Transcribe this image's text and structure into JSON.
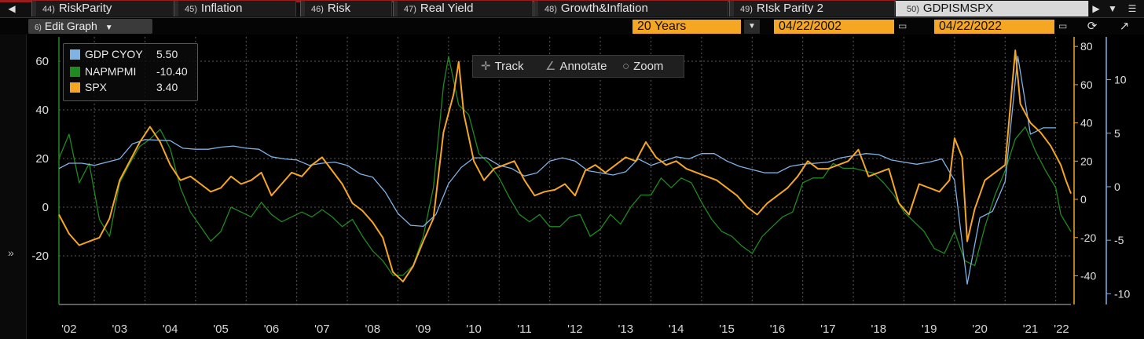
{
  "tabs": [
    {
      "num": "44)",
      "label": "RiskParity"
    },
    {
      "num": "45)",
      "label": "Inflation"
    },
    {
      "num": "46)",
      "label": "Risk"
    },
    {
      "num": "47)",
      "label": "Real Yield"
    },
    {
      "num": "48)",
      "label": "Growth&Inflation"
    },
    {
      "num": "49)",
      "label": "RIsk Parity 2"
    },
    {
      "num": "50)",
      "label": "GDPISMSPX"
    }
  ],
  "toolbar": {
    "edit_num": "6)",
    "edit_label": "Edit Graph",
    "period": "20 Years",
    "start_date": "04/22/2002",
    "end_date": "04/22/2022"
  },
  "chart_tools": {
    "track": "Track",
    "annotate": "Annotate",
    "zoom": "Zoom"
  },
  "legend": [
    {
      "name": "GDP CYOY",
      "value": "5.50",
      "color": "#7fb2e5"
    },
    {
      "name": "NAPMPMI",
      "value": "-10.40",
      "color": "#1f8a1f"
    },
    {
      "name": "SPX",
      "value": "3.40",
      "color": "#f5a623"
    }
  ],
  "colors": {
    "gdp": "#7fb2e5",
    "pmi": "#1f8a1f",
    "spx": "#f5a623",
    "background": "#000000",
    "grid": "#5a5a5a",
    "accent": "#f5a623"
  },
  "chart_data": {
    "type": "line",
    "grid": true,
    "legend_position": "top-left",
    "x_tick_labels": [
      "'02",
      "'03",
      "'04",
      "'05",
      "'06",
      "'07",
      "'08",
      "'09",
      "'10",
      "'11",
      "'12",
      "'13",
      "'14",
      "'15",
      "'16",
      "'17",
      "'18",
      "'19",
      "'20",
      "'21",
      "'22"
    ],
    "xlim": [
      2002.3,
      2022.3
    ],
    "axes": {
      "left": {
        "ticks": [
          60,
          40,
          20,
          0,
          -20
        ],
        "ylim": [
          -40,
          70
        ],
        "series": "NAPMPMI"
      },
      "right1": {
        "ticks": [
          80,
          60,
          40,
          20,
          0,
          -20,
          -40
        ],
        "ylim": [
          -55,
          85
        ],
        "series": "SPX"
      },
      "right2": {
        "ticks": [
          10,
          5,
          0,
          -5,
          -10
        ],
        "ylim": [
          -11,
          14
        ],
        "series": "GDP CYOY"
      }
    },
    "series": [
      {
        "name": "GDP CYOY",
        "axis": "right2",
        "points": [
          [
            2002.3,
            1.7
          ],
          [
            2002.5,
            2.2
          ],
          [
            2002.75,
            2.2
          ],
          [
            2003.0,
            2.0
          ],
          [
            2003.5,
            2.6
          ],
          [
            2003.75,
            4.0
          ],
          [
            2004.0,
            4.4
          ],
          [
            2004.5,
            4.3
          ],
          [
            2004.75,
            3.6
          ],
          [
            2005.0,
            3.5
          ],
          [
            2005.25,
            3.5
          ],
          [
            2005.5,
            3.7
          ],
          [
            2005.75,
            3.8
          ],
          [
            2006.0,
            3.6
          ],
          [
            2006.25,
            3.5
          ],
          [
            2006.5,
            2.8
          ],
          [
            2006.75,
            2.6
          ],
          [
            2007.0,
            2.5
          ],
          [
            2007.25,
            2.0
          ],
          [
            2007.5,
            2.2
          ],
          [
            2007.75,
            2.3
          ],
          [
            2008.0,
            2.0
          ],
          [
            2008.25,
            1.2
          ],
          [
            2008.5,
            0.9
          ],
          [
            2008.75,
            -0.5
          ],
          [
            2009.0,
            -2.5
          ],
          [
            2009.25,
            -3.6
          ],
          [
            2009.5,
            -3.7
          ],
          [
            2009.75,
            -2.6
          ],
          [
            2010.0,
            0.3
          ],
          [
            2010.25,
            1.8
          ],
          [
            2010.5,
            2.7
          ],
          [
            2010.75,
            2.7
          ],
          [
            2011.0,
            2.0
          ],
          [
            2011.25,
            1.7
          ],
          [
            2011.5,
            1.0
          ],
          [
            2011.75,
            1.3
          ],
          [
            2012.0,
            2.4
          ],
          [
            2012.25,
            2.7
          ],
          [
            2012.5,
            2.4
          ],
          [
            2012.75,
            1.5
          ],
          [
            2013.0,
            1.3
          ],
          [
            2013.25,
            1.1
          ],
          [
            2013.5,
            1.4
          ],
          [
            2013.75,
            2.6
          ],
          [
            2014.0,
            2.0
          ],
          [
            2014.25,
            2.4
          ],
          [
            2014.5,
            2.8
          ],
          [
            2014.75,
            2.6
          ],
          [
            2015.0,
            3.1
          ],
          [
            2015.25,
            3.1
          ],
          [
            2015.5,
            2.4
          ],
          [
            2015.75,
            1.9
          ],
          [
            2016.0,
            1.6
          ],
          [
            2016.25,
            1.3
          ],
          [
            2016.5,
            1.3
          ],
          [
            2016.75,
            1.9
          ],
          [
            2017.0,
            2.1
          ],
          [
            2017.25,
            2.2
          ],
          [
            2017.5,
            2.3
          ],
          [
            2017.75,
            2.7
          ],
          [
            2018.0,
            2.9
          ],
          [
            2018.25,
            3.1
          ],
          [
            2018.5,
            3.0
          ],
          [
            2018.75,
            2.5
          ],
          [
            2019.0,
            2.3
          ],
          [
            2019.25,
            2.1
          ],
          [
            2019.5,
            2.3
          ],
          [
            2019.75,
            2.6
          ],
          [
            2020.0,
            0.6
          ],
          [
            2020.25,
            -9.1
          ],
          [
            2020.5,
            -2.9
          ],
          [
            2020.75,
            -2.3
          ],
          [
            2021.0,
            0.5
          ],
          [
            2021.25,
            12.2
          ],
          [
            2021.5,
            4.9
          ],
          [
            2021.75,
            5.5
          ],
          [
            2022.0,
            5.5
          ]
        ]
      },
      {
        "name": "NAPMPMI",
        "axis": "left",
        "points": [
          [
            2002.3,
            20
          ],
          [
            2002.5,
            30
          ],
          [
            2002.7,
            10
          ],
          [
            2002.9,
            18
          ],
          [
            2003.1,
            -5
          ],
          [
            2003.3,
            -12
          ],
          [
            2003.5,
            10
          ],
          [
            2003.7,
            18
          ],
          [
            2003.9,
            25
          ],
          [
            2004.1,
            28
          ],
          [
            2004.3,
            32
          ],
          [
            2004.5,
            24
          ],
          [
            2004.7,
            8
          ],
          [
            2004.9,
            -2
          ],
          [
            2005.1,
            -8
          ],
          [
            2005.3,
            -14
          ],
          [
            2005.5,
            -10
          ],
          [
            2005.7,
            0
          ],
          [
            2005.9,
            -2
          ],
          [
            2006.1,
            -4
          ],
          [
            2006.3,
            2
          ],
          [
            2006.5,
            -3
          ],
          [
            2006.7,
            -6
          ],
          [
            2006.9,
            -4
          ],
          [
            2007.1,
            -2
          ],
          [
            2007.3,
            -4
          ],
          [
            2007.5,
            -1
          ],
          [
            2007.7,
            -4
          ],
          [
            2007.9,
            -8
          ],
          [
            2008.1,
            -5
          ],
          [
            2008.3,
            -12
          ],
          [
            2008.5,
            -18
          ],
          [
            2008.7,
            -22
          ],
          [
            2008.9,
            -28
          ],
          [
            2009.1,
            -28
          ],
          [
            2009.3,
            -24
          ],
          [
            2009.5,
            -12
          ],
          [
            2009.7,
            8
          ],
          [
            2009.9,
            50
          ],
          [
            2010.0,
            62
          ],
          [
            2010.2,
            42
          ],
          [
            2010.4,
            38
          ],
          [
            2010.6,
            22
          ],
          [
            2010.8,
            18
          ],
          [
            2011.0,
            12
          ],
          [
            2011.2,
            4
          ],
          [
            2011.4,
            -3
          ],
          [
            2011.6,
            -6
          ],
          [
            2011.8,
            -3
          ],
          [
            2012.0,
            -8
          ],
          [
            2012.2,
            -8
          ],
          [
            2012.4,
            -4
          ],
          [
            2012.6,
            -3
          ],
          [
            2012.8,
            -12
          ],
          [
            2013.0,
            -9
          ],
          [
            2013.2,
            -3
          ],
          [
            2013.4,
            -7
          ],
          [
            2013.6,
            0
          ],
          [
            2013.8,
            5
          ],
          [
            2014.0,
            5
          ],
          [
            2014.2,
            12
          ],
          [
            2014.4,
            8
          ],
          [
            2014.6,
            12
          ],
          [
            2014.8,
            10
          ],
          [
            2015.0,
            2
          ],
          [
            2015.2,
            -5
          ],
          [
            2015.4,
            -10
          ],
          [
            2015.6,
            -12
          ],
          [
            2015.8,
            -16
          ],
          [
            2016.0,
            -19
          ],
          [
            2016.2,
            -12
          ],
          [
            2016.4,
            -8
          ],
          [
            2016.6,
            -4
          ],
          [
            2016.8,
            -2
          ],
          [
            2017.0,
            10
          ],
          [
            2017.2,
            12
          ],
          [
            2017.4,
            12
          ],
          [
            2017.6,
            18
          ],
          [
            2017.8,
            16
          ],
          [
            2018.0,
            16
          ],
          [
            2018.2,
            15
          ],
          [
            2018.4,
            14
          ],
          [
            2018.6,
            10
          ],
          [
            2018.8,
            5
          ],
          [
            2019.0,
            -2
          ],
          [
            2019.2,
            -6
          ],
          [
            2019.4,
            -10
          ],
          [
            2019.6,
            -17
          ],
          [
            2019.8,
            -19
          ],
          [
            2020.0,
            -10
          ],
          [
            2020.2,
            -22
          ],
          [
            2020.4,
            -24
          ],
          [
            2020.6,
            -8
          ],
          [
            2020.8,
            5
          ],
          [
            2021.0,
            15
          ],
          [
            2021.2,
            28
          ],
          [
            2021.4,
            33
          ],
          [
            2021.6,
            23
          ],
          [
            2021.8,
            15
          ],
          [
            2022.0,
            8
          ],
          [
            2022.1,
            -3
          ],
          [
            2022.3,
            -10
          ]
        ]
      },
      {
        "name": "SPX",
        "axis": "right1",
        "points": [
          [
            2002.3,
            -8
          ],
          [
            2002.5,
            -18
          ],
          [
            2002.7,
            -24
          ],
          [
            2002.9,
            -22
          ],
          [
            2003.1,
            -20
          ],
          [
            2003.3,
            -10
          ],
          [
            2003.5,
            10
          ],
          [
            2003.7,
            20
          ],
          [
            2003.9,
            30
          ],
          [
            2004.1,
            38
          ],
          [
            2004.3,
            30
          ],
          [
            2004.5,
            18
          ],
          [
            2004.7,
            10
          ],
          [
            2004.9,
            12
          ],
          [
            2005.1,
            8
          ],
          [
            2005.3,
            4
          ],
          [
            2005.5,
            6
          ],
          [
            2005.7,
            12
          ],
          [
            2005.9,
            8
          ],
          [
            2006.1,
            10
          ],
          [
            2006.3,
            14
          ],
          [
            2006.5,
            2
          ],
          [
            2006.7,
            8
          ],
          [
            2006.9,
            14
          ],
          [
            2007.1,
            12
          ],
          [
            2007.3,
            18
          ],
          [
            2007.5,
            22
          ],
          [
            2007.7,
            15
          ],
          [
            2007.9,
            8
          ],
          [
            2008.1,
            -2
          ],
          [
            2008.3,
            -6
          ],
          [
            2008.5,
            -12
          ],
          [
            2008.7,
            -20
          ],
          [
            2008.9,
            -38
          ],
          [
            2009.1,
            -43
          ],
          [
            2009.3,
            -35
          ],
          [
            2009.5,
            -22
          ],
          [
            2009.7,
            -10
          ],
          [
            2009.9,
            35
          ],
          [
            2010.1,
            55
          ],
          [
            2010.2,
            72
          ],
          [
            2010.3,
            45
          ],
          [
            2010.5,
            20
          ],
          [
            2010.7,
            10
          ],
          [
            2010.9,
            16
          ],
          [
            2011.1,
            18
          ],
          [
            2011.3,
            20
          ],
          [
            2011.5,
            10
          ],
          [
            2011.7,
            2
          ],
          [
            2011.9,
            4
          ],
          [
            2012.1,
            5
          ],
          [
            2012.3,
            8
          ],
          [
            2012.5,
            2
          ],
          [
            2012.7,
            15
          ],
          [
            2012.9,
            18
          ],
          [
            2013.1,
            14
          ],
          [
            2013.3,
            18
          ],
          [
            2013.5,
            22
          ],
          [
            2013.7,
            20
          ],
          [
            2013.9,
            30
          ],
          [
            2014.1,
            22
          ],
          [
            2014.3,
            18
          ],
          [
            2014.5,
            20
          ],
          [
            2014.7,
            16
          ],
          [
            2014.9,
            14
          ],
          [
            2015.1,
            12
          ],
          [
            2015.3,
            10
          ],
          [
            2015.5,
            6
          ],
          [
            2015.7,
            2
          ],
          [
            2015.9,
            -4
          ],
          [
            2016.1,
            -8
          ],
          [
            2016.3,
            -2
          ],
          [
            2016.5,
            2
          ],
          [
            2016.7,
            6
          ],
          [
            2016.9,
            12
          ],
          [
            2017.1,
            20
          ],
          [
            2017.3,
            16
          ],
          [
            2017.5,
            16
          ],
          [
            2017.7,
            18
          ],
          [
            2017.9,
            20
          ],
          [
            2018.1,
            26
          ],
          [
            2018.3,
            12
          ],
          [
            2018.5,
            14
          ],
          [
            2018.7,
            16
          ],
          [
            2018.9,
            -2
          ],
          [
            2019.1,
            -8
          ],
          [
            2019.3,
            8
          ],
          [
            2019.5,
            6
          ],
          [
            2019.7,
            4
          ],
          [
            2019.9,
            10
          ],
          [
            2020.0,
            32
          ],
          [
            2020.15,
            22
          ],
          [
            2020.25,
            -22
          ],
          [
            2020.4,
            -5
          ],
          [
            2020.6,
            10
          ],
          [
            2020.8,
            14
          ],
          [
            2021.0,
            18
          ],
          [
            2021.2,
            78
          ],
          [
            2021.3,
            50
          ],
          [
            2021.5,
            40
          ],
          [
            2021.7,
            35
          ],
          [
            2021.9,
            28
          ],
          [
            2022.1,
            18
          ],
          [
            2022.2,
            10
          ],
          [
            2022.3,
            3
          ]
        ]
      }
    ]
  }
}
